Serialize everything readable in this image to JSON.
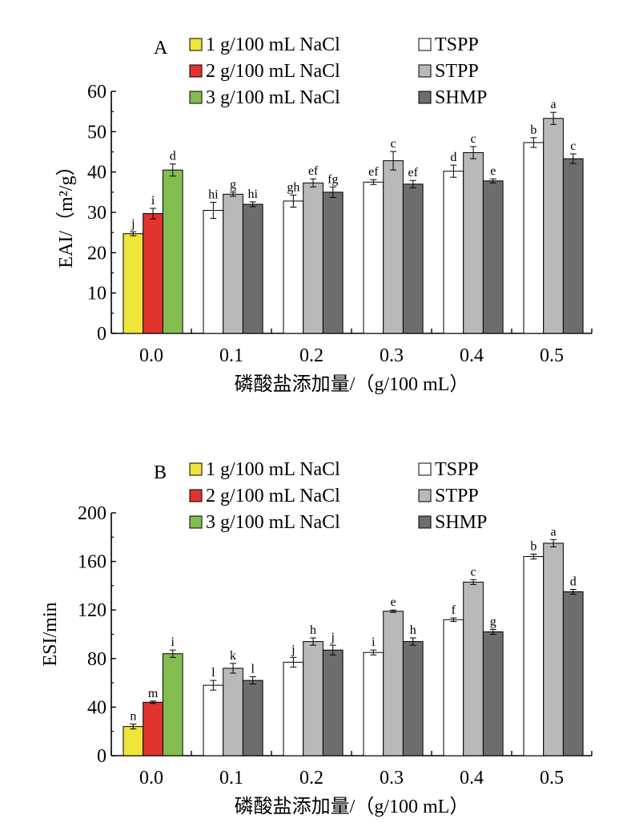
{
  "legend": [
    {
      "label": "1 g/100 mL NaCl",
      "color": "#f0e53a"
    },
    {
      "label": "2 g/100 mL NaCl",
      "color": "#e0332e"
    },
    {
      "label": "3 g/100 mL NaCl",
      "color": "#83bd4f"
    },
    {
      "label": "TSPP",
      "color": "#ffffff"
    },
    {
      "label": "STPP",
      "color": "#b9b9b9"
    },
    {
      "label": "SHMP",
      "color": "#6d6d70"
    }
  ],
  "chart_data": [
    {
      "type": "bar",
      "panel": "A",
      "xlabel": "磷酸盐添加量/（g/100 mL）",
      "ylabel": "EAI/（m²/g）",
      "ylim": [
        0,
        60
      ],
      "yticks": [
        0,
        10,
        20,
        30,
        40,
        50,
        60
      ],
      "categories": [
        "0.0",
        "0.1",
        "0.2",
        "0.3",
        "0.4",
        "0.5"
      ],
      "series": [
        {
          "name": "1 g/100 mL NaCl",
          "category": "0.0",
          "value": 24.7,
          "error": 0.5,
          "sig": "j"
        },
        {
          "name": "2 g/100 mL NaCl",
          "category": "0.0",
          "value": 29.7,
          "error": 1.3,
          "sig": "i"
        },
        {
          "name": "3 g/100 mL NaCl",
          "category": "0.0",
          "value": 40.5,
          "error": 1.5,
          "sig": "d"
        },
        {
          "name": "TSPP",
          "x": [
            "0.1",
            "0.2",
            "0.3",
            "0.4",
            "0.5"
          ],
          "values": [
            30.5,
            32.8,
            37.5,
            40.2,
            47.3
          ],
          "errors": [
            2.0,
            1.5,
            0.6,
            1.5,
            1.2
          ],
          "sig": [
            "hi",
            "gh",
            "ef",
            "d",
            "b"
          ]
        },
        {
          "name": "STPP",
          "x": [
            "0.1",
            "0.2",
            "0.3",
            "0.4",
            "0.5"
          ],
          "values": [
            34.5,
            37.3,
            42.8,
            44.8,
            53.3
          ],
          "errors": [
            0.5,
            1.0,
            2.3,
            1.5,
            1.5
          ],
          "sig": [
            "g",
            "ef",
            "c",
            "c",
            "a"
          ]
        },
        {
          "name": "SHMP",
          "x": [
            "0.1",
            "0.2",
            "0.3",
            "0.4",
            "0.5"
          ],
          "values": [
            32.0,
            35.0,
            37.0,
            37.8,
            43.3
          ],
          "errors": [
            0.6,
            1.3,
            0.9,
            0.5,
            1.2
          ],
          "sig": [
            "hi",
            "fg",
            "ef",
            "e",
            "c"
          ]
        }
      ]
    },
    {
      "type": "bar",
      "panel": "B",
      "xlabel": "磷酸盐添加量/（g/100 mL）",
      "ylabel": "ESI/min",
      "ylim": [
        0,
        200
      ],
      "yticks": [
        0,
        40,
        80,
        120,
        160,
        200
      ],
      "categories": [
        "0.0",
        "0.1",
        "0.2",
        "0.3",
        "0.4",
        "0.5"
      ],
      "series": [
        {
          "name": "1 g/100 mL NaCl",
          "category": "0.0",
          "value": 24,
          "error": 2,
          "sig": "n"
        },
        {
          "name": "2 g/100 mL NaCl",
          "category": "0.0",
          "value": 44,
          "error": 1,
          "sig": "m"
        },
        {
          "name": "3 g/100 mL NaCl",
          "category": "0.0",
          "value": 84,
          "error": 3,
          "sig": "i"
        },
        {
          "name": "TSPP",
          "x": [
            "0.1",
            "0.2",
            "0.3",
            "0.4",
            "0.5"
          ],
          "values": [
            58,
            77,
            85,
            112,
            164
          ],
          "errors": [
            4,
            4,
            2,
            1.5,
            2
          ],
          "sig": [
            "l",
            "j",
            "i",
            "f",
            "b"
          ]
        },
        {
          "name": "STPP",
          "x": [
            "0.1",
            "0.2",
            "0.3",
            "0.4",
            "0.5"
          ],
          "values": [
            72,
            94,
            119,
            143,
            175
          ],
          "errors": [
            4,
            3,
            1,
            2,
            3
          ],
          "sig": [
            "k",
            "h",
            "e",
            "c",
            "a"
          ]
        },
        {
          "name": "SHMP",
          "x": [
            "0.1",
            "0.2",
            "0.3",
            "0.4",
            "0.5"
          ],
          "values": [
            62,
            87,
            94,
            102,
            135
          ],
          "errors": [
            3,
            4,
            3,
            2,
            2
          ],
          "sig": [
            "l",
            "j",
            "h",
            "g",
            "d"
          ]
        }
      ]
    }
  ]
}
